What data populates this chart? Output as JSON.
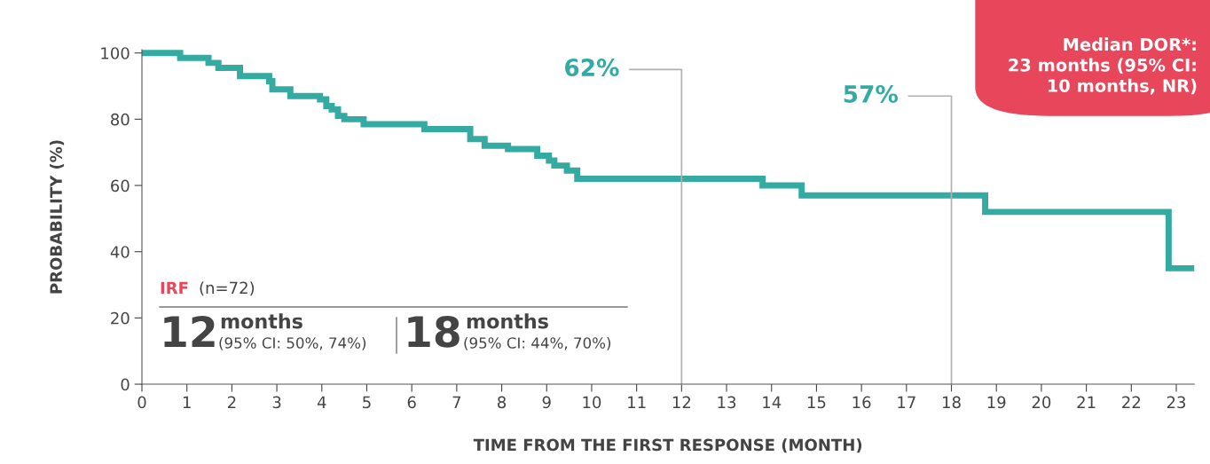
{
  "chart_data": {
    "type": "step",
    "xlabel": "TIME FROM THE FIRST RESPONSE (MONTH)",
    "ylabel": "PROBABILITY (%)",
    "series": [
      {
        "color": "#33aba3",
        "x": [
          0,
          0.85,
          1.48,
          1.7,
          2.18,
          2.83,
          2.9,
          3.3,
          3.96,
          4.1,
          4.22,
          4.36,
          4.5,
          4.93,
          6.28,
          7.3,
          7.62,
          8.14,
          8.79,
          9.05,
          9.17,
          9.45,
          9.68,
          13.8,
          14.67,
          18.75,
          22.83,
          23.37
        ],
        "values": [
          100,
          98.5,
          97,
          95.5,
          93,
          91.5,
          89,
          87,
          86,
          84,
          83,
          81,
          80,
          78.5,
          77,
          74,
          72,
          71,
          69,
          67.5,
          66,
          64.5,
          62,
          60,
          57,
          52,
          35,
          35
        ]
      }
    ],
    "xlim": [
      0,
      23.4
    ],
    "ylim": [
      0,
      101
    ],
    "xticks": [
      0,
      1,
      2,
      3,
      4,
      5,
      6,
      7,
      8,
      9,
      10,
      11,
      12,
      13,
      14,
      15,
      16,
      17,
      18,
      19,
      20,
      21,
      22,
      23
    ],
    "yticks": [
      0,
      20,
      40,
      60,
      80,
      100
    ],
    "ref_lines": [
      {
        "axis": "x",
        "value": 12,
        "color": "#b0b0b0"
      },
      {
        "axis": "x",
        "value": 18,
        "color": "#b0b0b0"
      }
    ],
    "annotations": [
      "62%",
      "57%",
      "IRF",
      "(n=72)",
      "12",
      "months",
      "(95% CI: 50%, 74%)",
      "18",
      "months",
      "(95% CI: 44%, 70%)",
      "Median DOR*:\n23 months (95% CI:\n10 months, NR)"
    ],
    "grid": false,
    "legend": false
  }
}
